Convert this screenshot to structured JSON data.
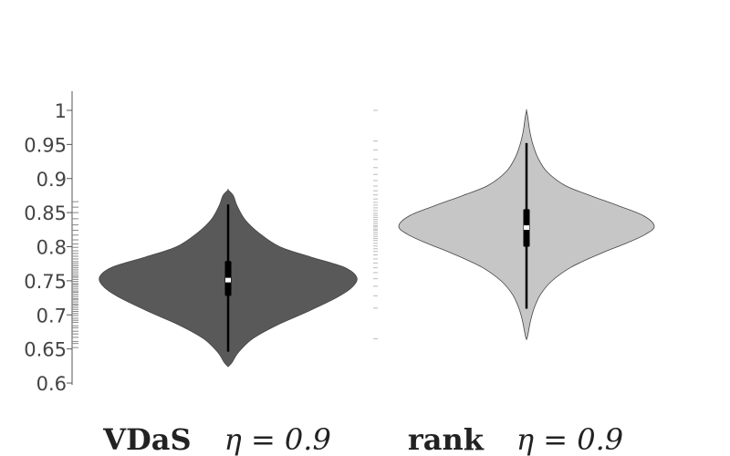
{
  "chart_data": {
    "type": "violin",
    "ylim": [
      0.6,
      1.0
    ],
    "yticks": [
      0.6,
      0.65,
      0.7,
      0.75,
      0.8,
      0.85,
      0.9,
      0.95,
      1.0
    ],
    "ytick_labels": [
      "0.6",
      "0.65",
      "0.7",
      "0.75",
      "0.8",
      "0.85",
      "0.9",
      "0.95",
      "1"
    ],
    "grid": false,
    "series": [
      {
        "category": "VDaS",
        "eta_label": "η = 0.9",
        "color": "#595959",
        "min": 0.624,
        "max": 0.883,
        "q1": 0.728,
        "median": 0.751,
        "q3": 0.779,
        "whisker_low": 0.646,
        "whisker_high": 0.862,
        "profile": [
          [
            0.624,
            0.0
          ],
          [
            0.63,
            0.03
          ],
          [
            0.645,
            0.08
          ],
          [
            0.665,
            0.19
          ],
          [
            0.685,
            0.38
          ],
          [
            0.705,
            0.62
          ],
          [
            0.725,
            0.84
          ],
          [
            0.74,
            0.96
          ],
          [
            0.755,
            1.0
          ],
          [
            0.77,
            0.9
          ],
          [
            0.785,
            0.64
          ],
          [
            0.8,
            0.4
          ],
          [
            0.82,
            0.24
          ],
          [
            0.84,
            0.13
          ],
          [
            0.86,
            0.07
          ],
          [
            0.875,
            0.04
          ],
          [
            0.883,
            0.0
          ]
        ]
      },
      {
        "category": "rank",
        "eta_label": "η = 0.9",
        "color": "#c6c6c6",
        "min": 0.664,
        "max": 1.0,
        "q1": 0.8,
        "median": 0.828,
        "q3": 0.855,
        "whisker_low": 0.709,
        "whisker_high": 0.952,
        "profile": [
          [
            0.664,
            0.0
          ],
          [
            0.67,
            0.01
          ],
          [
            0.69,
            0.03
          ],
          [
            0.71,
            0.06
          ],
          [
            0.73,
            0.11
          ],
          [
            0.75,
            0.2
          ],
          [
            0.77,
            0.35
          ],
          [
            0.79,
            0.58
          ],
          [
            0.805,
            0.78
          ],
          [
            0.818,
            0.93
          ],
          [
            0.83,
            1.0
          ],
          [
            0.845,
            0.92
          ],
          [
            0.86,
            0.72
          ],
          [
            0.875,
            0.5
          ],
          [
            0.89,
            0.3
          ],
          [
            0.91,
            0.16
          ],
          [
            0.93,
            0.09
          ],
          [
            0.95,
            0.05
          ],
          [
            0.97,
            0.025
          ],
          [
            0.99,
            0.01
          ],
          [
            1.0,
            0.0
          ]
        ]
      }
    ],
    "rug_values_vdas": [
      0.652,
      0.658,
      0.661,
      0.667,
      0.672,
      0.676,
      0.681,
      0.684,
      0.689,
      0.692,
      0.695,
      0.699,
      0.702,
      0.705,
      0.708,
      0.711,
      0.714,
      0.716,
      0.719,
      0.722,
      0.724,
      0.727,
      0.73,
      0.733,
      0.735,
      0.738,
      0.741,
      0.744,
      0.746,
      0.749,
      0.752,
      0.755,
      0.757,
      0.76,
      0.763,
      0.766,
      0.769,
      0.772,
      0.775,
      0.778,
      0.782,
      0.786,
      0.79,
      0.794,
      0.799,
      0.804,
      0.81,
      0.817,
      0.824,
      0.832,
      0.841,
      0.85,
      0.858,
      0.866
    ],
    "rug_values_rank": [
      0.665,
      0.71,
      0.728,
      0.742,
      0.753,
      0.762,
      0.769,
      0.776,
      0.782,
      0.788,
      0.793,
      0.797,
      0.801,
      0.805,
      0.809,
      0.812,
      0.815,
      0.818,
      0.821,
      0.824,
      0.826,
      0.829,
      0.831,
      0.834,
      0.837,
      0.84,
      0.843,
      0.846,
      0.849,
      0.853,
      0.857,
      0.861,
      0.865,
      0.87,
      0.876,
      0.882,
      0.889,
      0.897,
      0.906,
      0.916,
      0.928,
      0.942,
      0.955,
      1.0
    ]
  }
}
